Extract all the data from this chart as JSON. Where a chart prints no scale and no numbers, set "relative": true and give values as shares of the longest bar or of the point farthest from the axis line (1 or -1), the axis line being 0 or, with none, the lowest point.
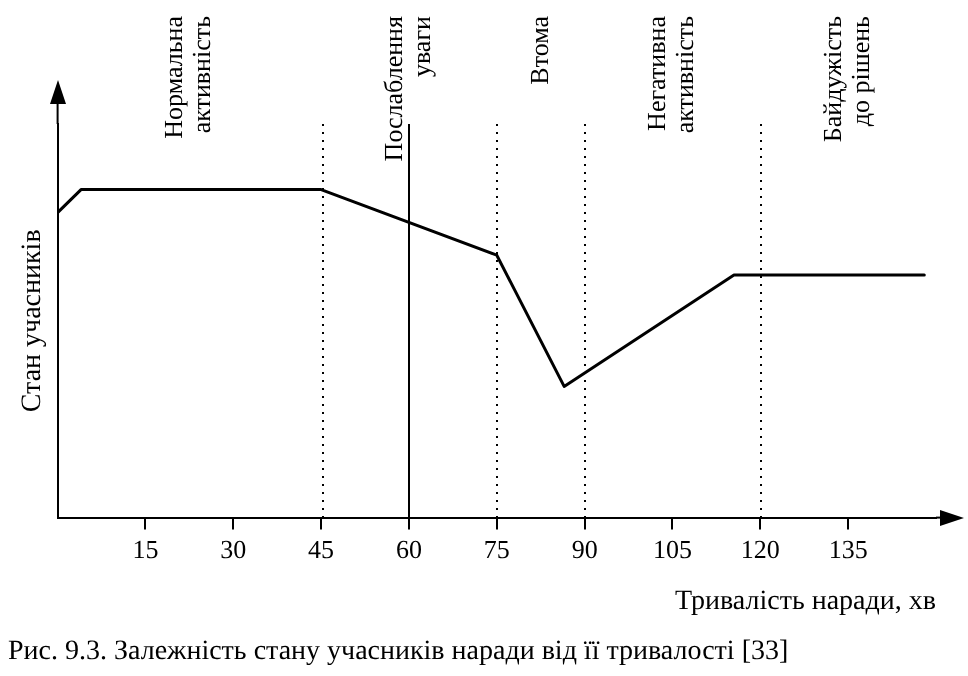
{
  "chart_data": {
    "type": "line",
    "title": "Рис. 9.3. Залежність стану учасників наради від її тривалості [33]",
    "xlabel": "Тривалість наради, хв",
    "ylabel": "Стан учасників",
    "relative": true,
    "x": [
      0,
      4,
      45,
      75,
      86.5,
      115.5,
      148
    ],
    "series": [
      {
        "color": "#000000",
        "values": [
          0.93,
          1,
          1,
          0.8,
          0.4,
          0.74,
          0.74
        ]
      }
    ],
    "xlim": [
      0,
      150
    ],
    "xticks": [
      15,
      30,
      45,
      60,
      75,
      90,
      105,
      120,
      135
    ],
    "ref_lines": [
      {
        "axis": "x",
        "value": 45,
        "line_style": "dotted"
      },
      {
        "axis": "x",
        "value": 60,
        "line_style": "solid"
      },
      {
        "axis": "x",
        "value": 75,
        "line_style": "dotted"
      },
      {
        "axis": "x",
        "value": 90,
        "line_style": "dotted"
      },
      {
        "axis": "x",
        "value": 120,
        "line_style": "dotted"
      }
    ],
    "annotations": [
      "Нормальна\nактивність",
      "Послаблення\nуваги",
      "Втома",
      "Негативна\nактивність",
      "Байдужість\nдо рішень"
    ],
    "grid": false,
    "legend": false,
    "marker": "none",
    "line_style": "solid"
  }
}
